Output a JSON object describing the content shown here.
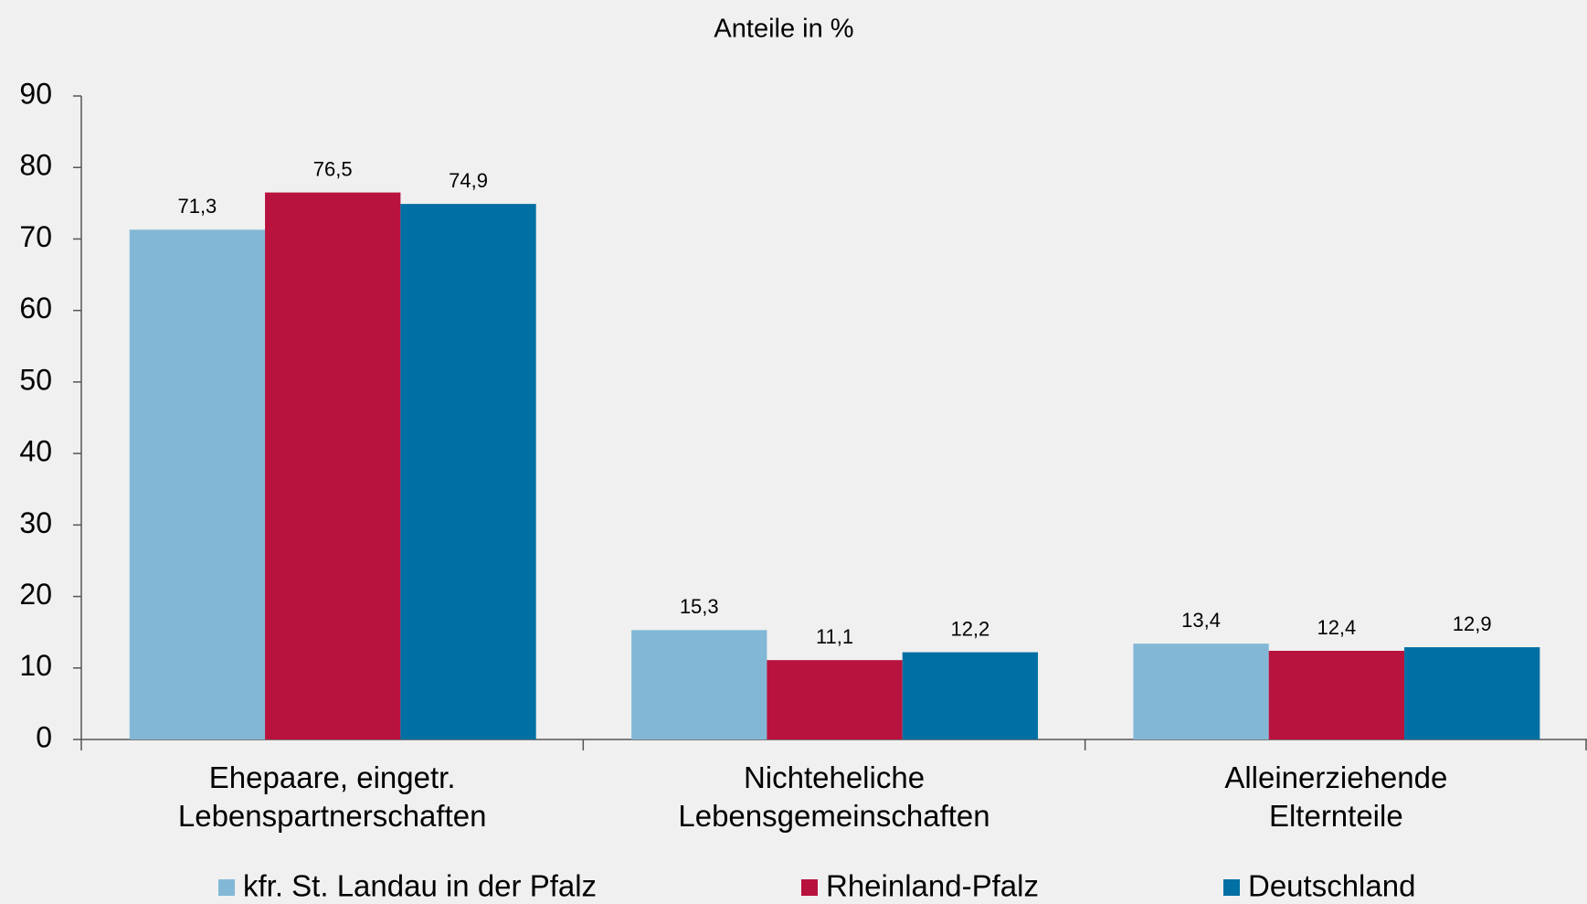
{
  "chart_data": {
    "type": "bar",
    "title": "Anteile in %",
    "categories": [
      "Ehepaare, eingetr.\nLebenspartnerschaften",
      "Nichteheliche\nLebensgemeinschaften",
      "Alleinerziehende\nElternteile"
    ],
    "series": [
      {
        "name": "kfr. St. Landau in der Pfalz",
        "color": "#82b8d5",
        "values": [
          71.3,
          15.3,
          13.4
        ],
        "value_labels": [
          "71,3",
          "15,3",
          "13,4"
        ]
      },
      {
        "name": "Rheinland-Pfalz",
        "color": "#b8123e",
        "values": [
          76.5,
          11.1,
          12.4
        ],
        "value_labels": [
          "76,5",
          "11,1",
          "12,4"
        ]
      },
      {
        "name": "Deutschland",
        "color": "#006fa3",
        "values": [
          74.9,
          12.2,
          12.9
        ],
        "value_labels": [
          "74,9",
          "12,2",
          "12,9"
        ]
      }
    ],
    "ylim": [
      0,
      90
    ],
    "yticks": [
      0,
      10,
      20,
      30,
      40,
      50,
      60,
      70,
      80,
      90
    ],
    "grid": false,
    "legend": "bottom"
  }
}
